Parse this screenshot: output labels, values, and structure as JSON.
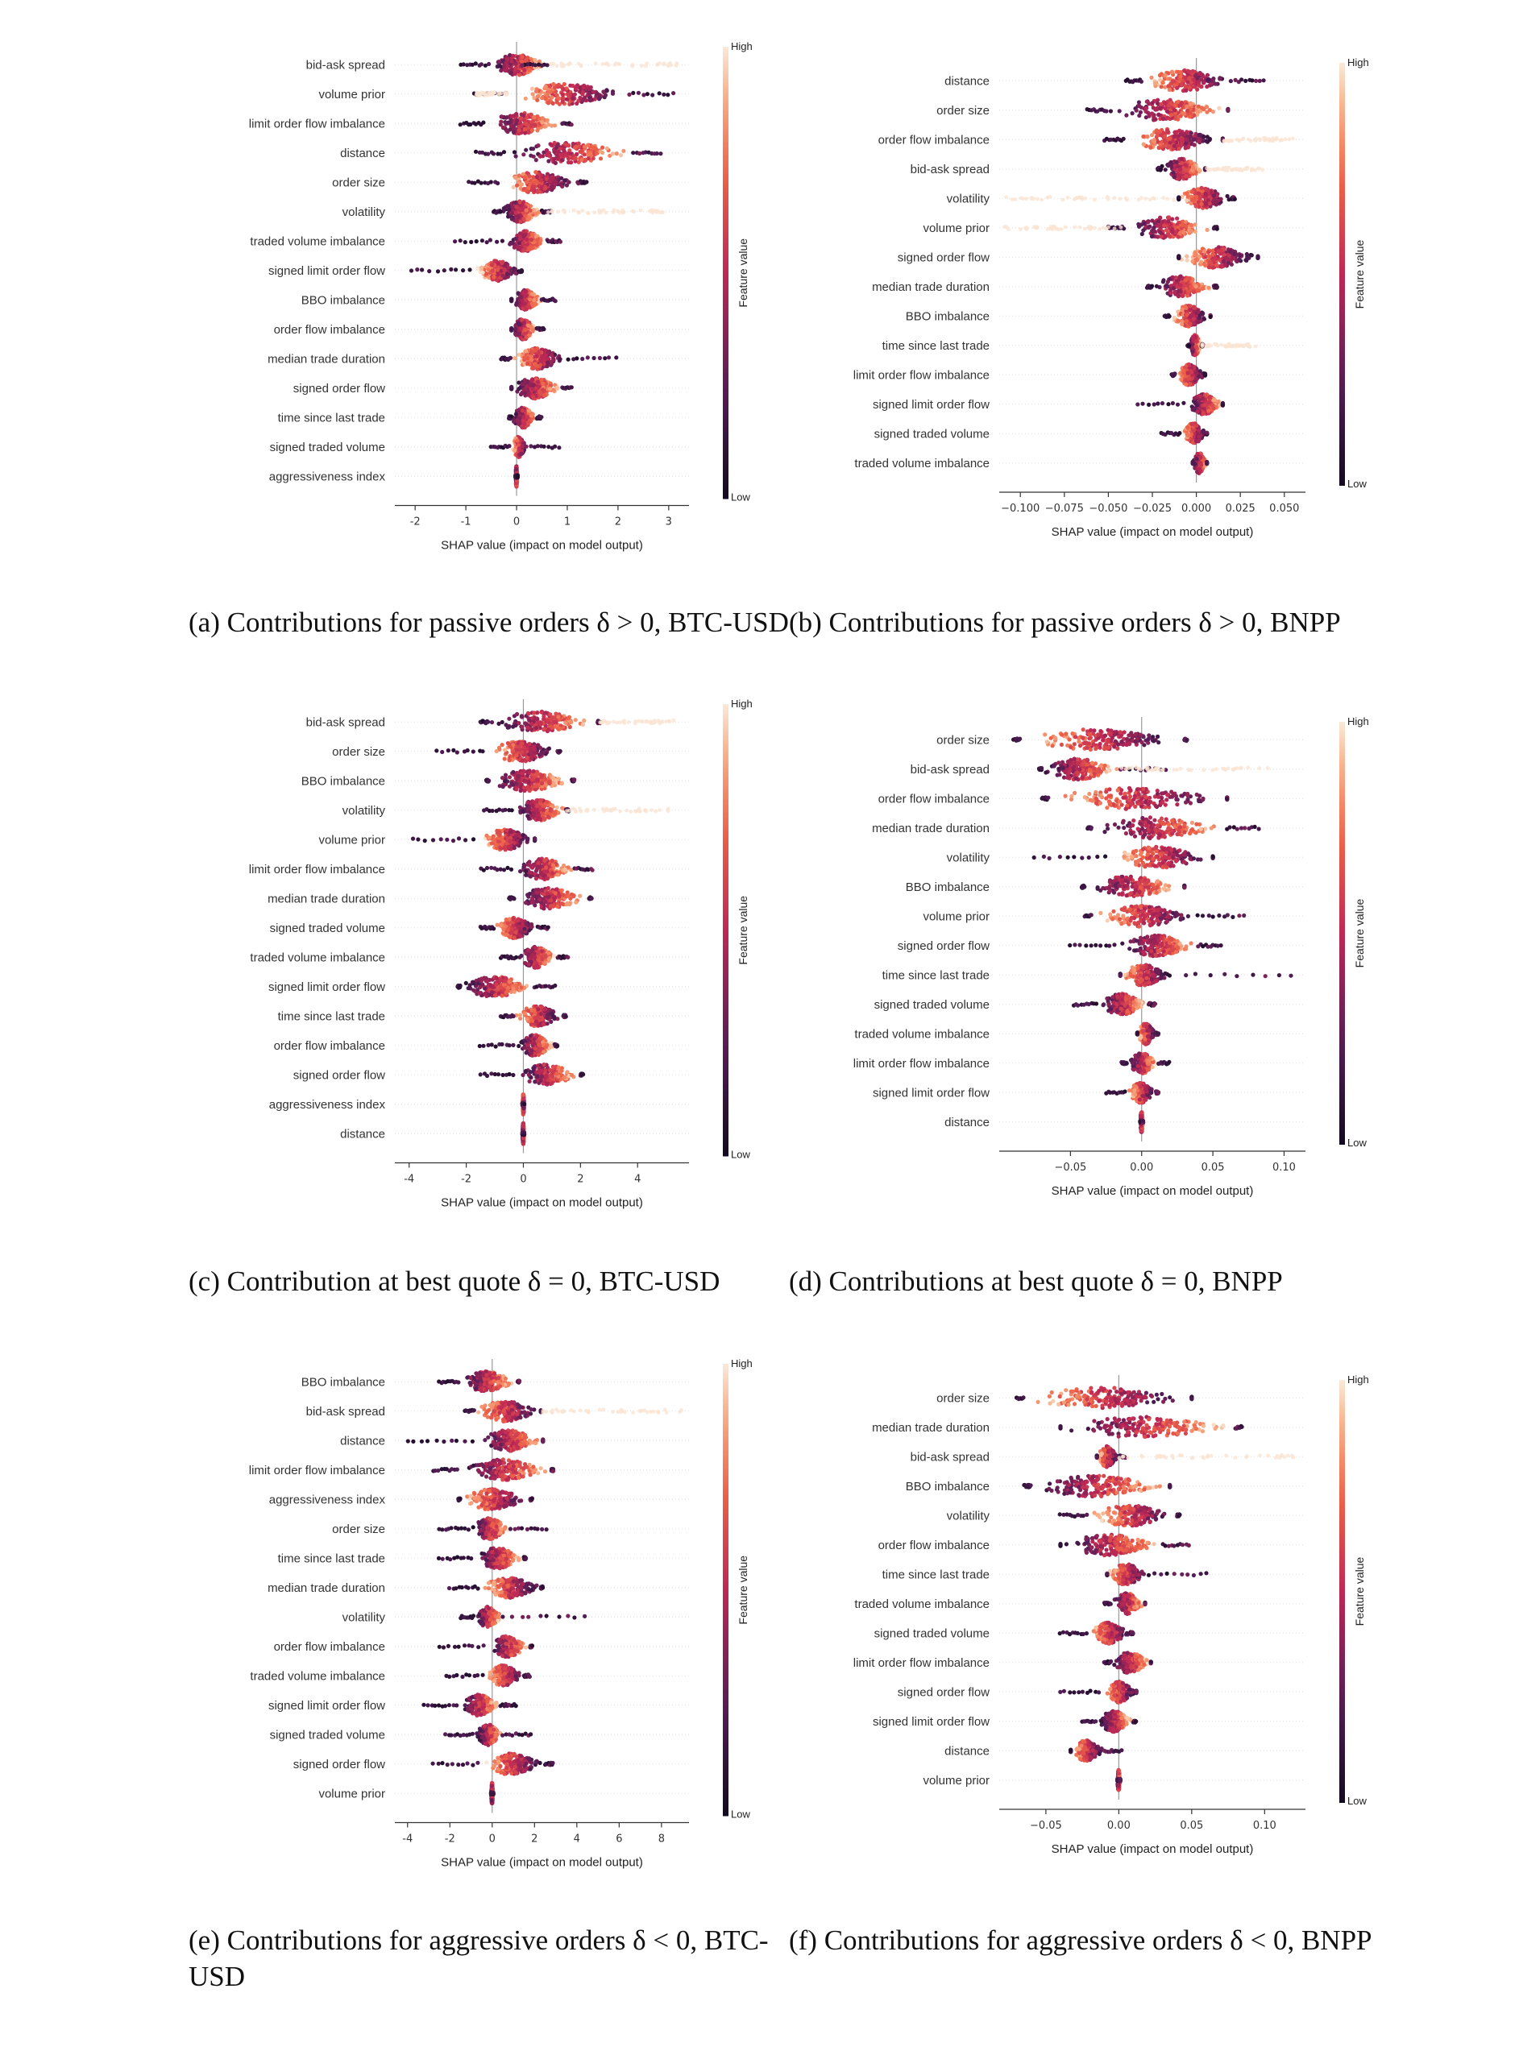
{
  "common": {
    "xlabel": "SHAP value (impact on model output)",
    "colorbar_label": "Feature value",
    "colorbar_high": "High",
    "colorbar_low": "Low"
  },
  "captions": {
    "a": "(a) Contributions for passive orders δ > 0, BTC-USD",
    "b": "(b) Contributions for passive orders δ > 0, BNPP",
    "c": "(c) Contribution at best quote δ = 0, BTC-USD",
    "d": "(d) Contributions at best quote δ = 0, BNPP",
    "e": "(e) Contributions for aggressive orders δ < 0, BTC-USD",
    "f": "(f) Contributions for aggressive orders δ < 0, BNPP"
  },
  "chart_data": [
    {
      "id": "a",
      "type": "scatter",
      "xlim": [
        -2.4,
        3.4
      ],
      "xticks": [
        -2,
        -1,
        0,
        1,
        2,
        3
      ],
      "xtick_labels": [
        "-2",
        "-1",
        "0",
        "1",
        "2",
        "3"
      ],
      "features": [
        {
          "name": "bid-ask spread",
          "min": -1.1,
          "max": 0.05,
          "spread_pos": 3.2,
          "core": [
            -0.5,
            0.6
          ]
        },
        {
          "name": "volume prior",
          "min": -0.85,
          "max": 3.2,
          "spread_neg": -0.8,
          "core": [
            -0.15,
            2.2
          ]
        },
        {
          "name": "limit order flow imbalance",
          "min": -1.1,
          "max": 1.1,
          "core": [
            -0.6,
            0.9
          ]
        },
        {
          "name": "distance",
          "min": -0.8,
          "max": 2.9,
          "core": [
            -0.2,
            2.3
          ]
        },
        {
          "name": "order size",
          "min": -0.95,
          "max": 1.4,
          "core": [
            -0.3,
            1.2
          ]
        },
        {
          "name": "volatility",
          "min": -0.45,
          "max": 0.7,
          "spread_pos": 2.9,
          "core": [
            -0.3,
            0.5
          ]
        },
        {
          "name": "traded volume imbalance",
          "min": -1.2,
          "max": 0.9,
          "core": [
            -0.2,
            0.6
          ]
        },
        {
          "name": "signed limit order flow",
          "min": -2.1,
          "max": 0.1,
          "core": [
            -0.8,
            0.1
          ]
        },
        {
          "name": "BBO imbalance",
          "min": -0.1,
          "max": 0.8,
          "core": [
            -0.1,
            0.5
          ]
        },
        {
          "name": "order flow imbalance",
          "min": -0.1,
          "max": 0.55,
          "core": [
            -0.1,
            0.4
          ]
        },
        {
          "name": "median trade duration",
          "min": -0.3,
          "max": 2.05,
          "core": [
            -0.1,
            1.0
          ]
        },
        {
          "name": "signed order flow",
          "min": -0.1,
          "max": 1.1,
          "core": [
            -0.1,
            0.9
          ]
        },
        {
          "name": "time since last trade",
          "min": -0.15,
          "max": 0.5,
          "core": [
            -0.1,
            0.4
          ]
        },
        {
          "name": "signed traded volume",
          "min": -0.5,
          "max": 0.9,
          "core": [
            -0.1,
            0.2
          ]
        },
        {
          "name": "aggressiveness index",
          "min": -0.02,
          "max": 0.02,
          "core": [
            -0.02,
            0.02
          ]
        }
      ]
    },
    {
      "id": "b",
      "type": "scatter",
      "xlim": [
        -0.112,
        0.062
      ],
      "xticks": [
        -0.1,
        -0.075,
        -0.05,
        -0.025,
        0.0,
        0.025,
        0.05
      ],
      "xtick_labels": [
        "−0.100",
        "−0.075",
        "−0.050",
        "−0.025",
        "0.000",
        "0.025",
        "0.050"
      ],
      "features": [
        {
          "name": "distance",
          "min": -0.04,
          "max": 0.04,
          "core": [
            -0.03,
            0.02
          ]
        },
        {
          "name": "order size",
          "min": -0.062,
          "max": 0.018,
          "core": [
            -0.05,
            0.018
          ]
        },
        {
          "name": "order flow imbalance",
          "min": -0.052,
          "max": 0.015,
          "spread_pos": 0.055,
          "core": [
            -0.04,
            0.015
          ]
        },
        {
          "name": "bid-ask spread",
          "min": -0.022,
          "max": 0.005,
          "spread_pos": 0.04,
          "core": [
            -0.02,
            0.005
          ]
        },
        {
          "name": "volatility",
          "min": -0.01,
          "max": 0.022,
          "spread_neg": -0.11,
          "core": [
            -0.01,
            0.02
          ]
        },
        {
          "name": "volume prior",
          "min": -0.05,
          "max": 0.012,
          "spread_neg": -0.11,
          "core": [
            -0.04,
            0.01
          ]
        },
        {
          "name": "signed order flow",
          "min": -0.01,
          "max": 0.035,
          "core": [
            -0.01,
            0.035
          ]
        },
        {
          "name": "median trade duration",
          "min": -0.028,
          "max": 0.012,
          "core": [
            -0.025,
            0.01
          ]
        },
        {
          "name": "BBO imbalance",
          "min": -0.018,
          "max": 0.008,
          "core": [
            -0.015,
            0.008
          ]
        },
        {
          "name": "time since last trade",
          "min": -0.005,
          "max": 0.004,
          "spread_pos": 0.035,
          "core": [
            -0.004,
            0.003
          ]
        },
        {
          "name": "limit order flow imbalance",
          "min": -0.014,
          "max": 0.005,
          "core": [
            -0.012,
            0.005
          ]
        },
        {
          "name": "signed limit order flow",
          "min": -0.033,
          "max": 0.015,
          "core": [
            -0.005,
            0.015
          ]
        },
        {
          "name": "signed traded volume",
          "min": -0.02,
          "max": 0.006,
          "core": [
            -0.008,
            0.006
          ]
        },
        {
          "name": "traded volume imbalance",
          "min": -0.002,
          "max": 0.006,
          "core": [
            -0.002,
            0.006
          ]
        }
      ]
    },
    {
      "id": "c",
      "type": "scatter",
      "xlim": [
        -4.5,
        5.8
      ],
      "xticks": [
        -4,
        -2,
        0,
        2,
        4
      ],
      "xtick_labels": [
        "-4",
        "-2",
        "0",
        "2",
        "4"
      ],
      "features": [
        {
          "name": "bid-ask spread",
          "min": -1.5,
          "max": 2.7,
          "spread_pos": 5.3,
          "core": [
            -1.2,
            2.6
          ]
        },
        {
          "name": "order size",
          "min": -3.0,
          "max": 1.3,
          "core": [
            -1.2,
            1.2
          ]
        },
        {
          "name": "BBO imbalance",
          "min": -1.3,
          "max": 1.8,
          "core": [
            -1.2,
            1.7
          ]
        },
        {
          "name": "volatility",
          "min": -1.4,
          "max": 1.6,
          "spread_pos": 5.2,
          "core": [
            -0.3,
            1.5
          ]
        },
        {
          "name": "volume prior",
          "min": -3.9,
          "max": 0.4,
          "core": [
            -1.5,
            0.4
          ]
        },
        {
          "name": "limit order flow imbalance",
          "min": -1.5,
          "max": 2.5,
          "core": [
            -0.3,
            1.8
          ]
        },
        {
          "name": "median trade duration",
          "min": -0.5,
          "max": 2.4,
          "core": [
            -0.3,
            2.3
          ]
        },
        {
          "name": "signed traded volume",
          "min": -1.5,
          "max": 0.9,
          "core": [
            -1.0,
            0.5
          ]
        },
        {
          "name": "traded volume imbalance",
          "min": -0.8,
          "max": 1.6,
          "core": [
            -0.2,
            1.2
          ]
        },
        {
          "name": "signed limit order flow",
          "min": -2.3,
          "max": 1.2,
          "core": [
            -2.2,
            0.4
          ]
        },
        {
          "name": "time since last trade",
          "min": -0.8,
          "max": 1.5,
          "core": [
            -0.3,
            1.4
          ]
        },
        {
          "name": "order flow imbalance",
          "min": -1.5,
          "max": 1.2,
          "core": [
            -0.2,
            1.1
          ]
        },
        {
          "name": "signed order flow",
          "min": -1.5,
          "max": 2.1,
          "core": [
            -0.2,
            2.0
          ]
        },
        {
          "name": "aggressiveness index",
          "min": -0.03,
          "max": 0.03,
          "core": [
            -0.03,
            0.03
          ]
        },
        {
          "name": "distance",
          "min": -0.03,
          "max": 0.03,
          "core": [
            -0.03,
            0.03
          ]
        }
      ]
    },
    {
      "id": "d",
      "type": "scatter",
      "xlim": [
        -0.1,
        0.115
      ],
      "xticks": [
        -0.05,
        0.0,
        0.05,
        0.1
      ],
      "xtick_labels": [
        "−0.05",
        "0.00",
        "0.05",
        "0.10"
      ],
      "features": [
        {
          "name": "order size",
          "min": -0.09,
          "max": 0.032,
          "core": [
            -0.085,
            0.03
          ]
        },
        {
          "name": "bid-ask spread",
          "min": -0.072,
          "max": 0.02,
          "spread_pos": 0.09,
          "core": [
            -0.07,
            -0.015
          ]
        },
        {
          "name": "order flow imbalance",
          "min": -0.07,
          "max": 0.06,
          "core": [
            -0.065,
            0.06
          ]
        },
        {
          "name": "median trade duration",
          "min": -0.038,
          "max": 0.085,
          "core": [
            -0.035,
            0.06
          ]
        },
        {
          "name": "volatility",
          "min": -0.075,
          "max": 0.05,
          "core": [
            -0.02,
            0.05
          ]
        },
        {
          "name": "BBO imbalance",
          "min": -0.042,
          "max": 0.03,
          "core": [
            -0.04,
            0.03
          ]
        },
        {
          "name": "volume prior",
          "min": -0.04,
          "max": 0.075,
          "core": [
            -0.035,
            0.04
          ]
        },
        {
          "name": "signed order flow",
          "min": -0.05,
          "max": 0.057,
          "core": [
            -0.015,
            0.04
          ]
        },
        {
          "name": "time since last trade",
          "min": -0.015,
          "max": 0.115,
          "core": [
            -0.015,
            0.02
          ]
        },
        {
          "name": "signed traded volume",
          "min": -0.048,
          "max": 0.01,
          "core": [
            -0.03,
            0.005
          ]
        },
        {
          "name": "traded volume imbalance",
          "min": -0.003,
          "max": 0.012,
          "core": [
            -0.003,
            0.01
          ]
        },
        {
          "name": "limit order flow imbalance",
          "min": -0.014,
          "max": 0.02,
          "core": [
            -0.01,
            0.012
          ]
        },
        {
          "name": "signed limit order flow",
          "min": -0.025,
          "max": 0.012,
          "core": [
            -0.01,
            0.01
          ]
        },
        {
          "name": "distance",
          "min": -0.001,
          "max": 0.001,
          "core": [
            -0.001,
            0.001
          ]
        }
      ]
    },
    {
      "id": "e",
      "type": "scatter",
      "xlim": [
        -4.6,
        9.3
      ],
      "xticks": [
        -4,
        -2,
        0,
        2,
        4,
        6,
        8
      ],
      "xtick_labels": [
        "-4",
        "-2",
        "0",
        "2",
        "4",
        "6",
        "8"
      ],
      "features": [
        {
          "name": "BBO imbalance",
          "min": -2.5,
          "max": 1.3,
          "core": [
            -1.5,
            1.2
          ]
        },
        {
          "name": "bid-ask spread",
          "min": -1.3,
          "max": 2.3,
          "spread_pos": 9.0,
          "core": [
            -0.8,
            2.3
          ]
        },
        {
          "name": "distance",
          "min": -4.0,
          "max": 2.4,
          "core": [
            -0.6,
            2.4
          ]
        },
        {
          "name": "limit order flow imbalance",
          "min": -2.8,
          "max": 2.9,
          "core": [
            -1.5,
            2.8
          ]
        },
        {
          "name": "aggressiveness index",
          "min": -1.6,
          "max": 1.9,
          "core": [
            -1.5,
            1.8
          ]
        },
        {
          "name": "order size",
          "min": -2.5,
          "max": 2.7,
          "core": [
            -1.0,
            0.9
          ]
        },
        {
          "name": "time since last trade",
          "min": -2.5,
          "max": 1.6,
          "core": [
            -0.8,
            1.5
          ]
        },
        {
          "name": "median trade duration",
          "min": -2.0,
          "max": 2.4,
          "core": [
            -0.5,
            2.3
          ]
        },
        {
          "name": "volatility",
          "min": -1.5,
          "max": 4.8,
          "core": [
            -0.8,
            0.5
          ]
        },
        {
          "name": "order flow imbalance",
          "min": -2.5,
          "max": 1.9,
          "core": [
            -0.2,
            1.8
          ]
        },
        {
          "name": "traded volume imbalance",
          "min": -2.2,
          "max": 1.8,
          "core": [
            -0.3,
            1.5
          ]
        },
        {
          "name": "signed limit order flow",
          "min": -3.2,
          "max": 1.2,
          "core": [
            -1.5,
            0.4
          ]
        },
        {
          "name": "signed traded volume",
          "min": -2.2,
          "max": 2.0,
          "core": [
            -0.8,
            0.5
          ]
        },
        {
          "name": "signed order flow",
          "min": -2.8,
          "max": 2.9,
          "core": [
            -0.5,
            2.5
          ]
        },
        {
          "name": "volume prior",
          "min": -0.05,
          "max": 0.05,
          "core": [
            -0.05,
            0.05
          ]
        }
      ]
    },
    {
      "id": "f",
      "type": "scatter",
      "xlim": [
        -0.082,
        0.128
      ],
      "xticks": [
        -0.05,
        0.0,
        0.05,
        0.1
      ],
      "xtick_labels": [
        "−0.05",
        "0.00",
        "0.05",
        "0.10"
      ],
      "features": [
        {
          "name": "order size",
          "min": -0.07,
          "max": 0.05,
          "core": [
            -0.065,
            0.05
          ]
        },
        {
          "name": "median trade duration",
          "min": -0.04,
          "max": 0.085,
          "core": [
            -0.04,
            0.08
          ]
        },
        {
          "name": "bid-ask spread",
          "min": -0.015,
          "max": 0.005,
          "spread_pos": 0.12,
          "core": [
            -0.015,
            0.0
          ]
        },
        {
          "name": "BBO imbalance",
          "min": -0.065,
          "max": 0.035,
          "core": [
            -0.06,
            0.035
          ]
        },
        {
          "name": "volatility",
          "min": -0.04,
          "max": 0.042,
          "core": [
            -0.02,
            0.04
          ]
        },
        {
          "name": "order flow imbalance",
          "min": -0.04,
          "max": 0.05,
          "core": [
            -0.04,
            0.03
          ]
        },
        {
          "name": "time since last trade",
          "min": -0.008,
          "max": 0.065,
          "core": [
            -0.008,
            0.02
          ]
        },
        {
          "name": "traded volume imbalance",
          "min": -0.01,
          "max": 0.018,
          "core": [
            -0.005,
            0.018
          ]
        },
        {
          "name": "signed traded volume",
          "min": -0.04,
          "max": 0.01,
          "core": [
            -0.02,
            0.008
          ]
        },
        {
          "name": "limit order flow imbalance",
          "min": -0.01,
          "max": 0.022,
          "core": [
            -0.005,
            0.022
          ]
        },
        {
          "name": "signed order flow",
          "min": -0.04,
          "max": 0.012,
          "core": [
            -0.01,
            0.012
          ]
        },
        {
          "name": "signed limit order flow",
          "min": -0.025,
          "max": 0.012,
          "core": [
            -0.015,
            0.01
          ]
        },
        {
          "name": "distance",
          "min": -0.033,
          "max": 0.003,
          "core": [
            -0.033,
            -0.01
          ]
        },
        {
          "name": "volume prior",
          "min": -0.001,
          "max": 0.001,
          "core": [
            -0.001,
            0.001
          ]
        }
      ]
    }
  ]
}
